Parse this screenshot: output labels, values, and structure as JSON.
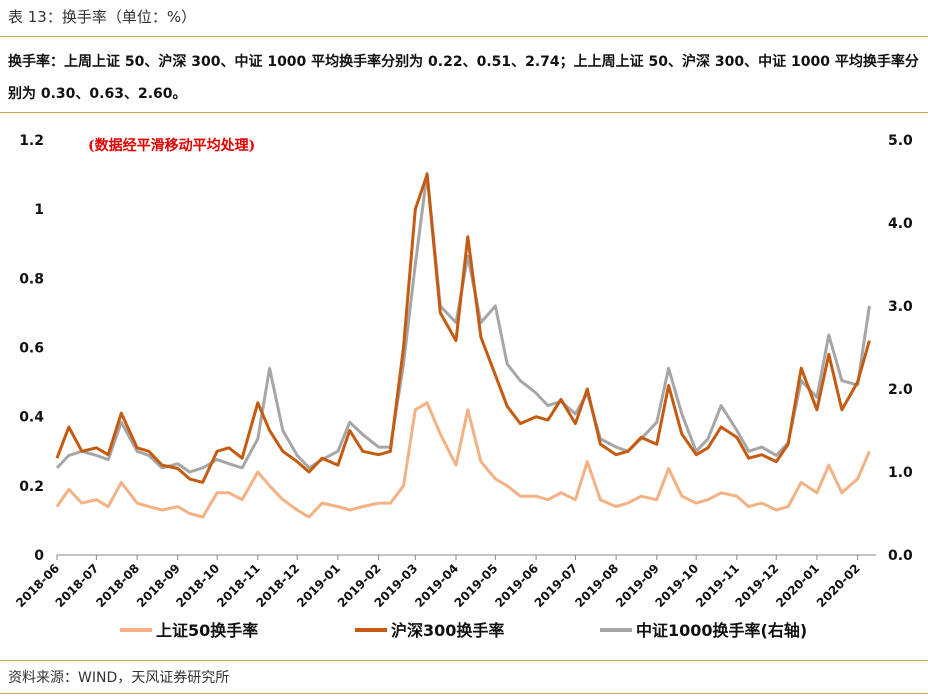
{
  "header": {
    "title": "表 13：换手率（单位：%）",
    "summary": "换手率：上周上证 50、沪深 300、中证 1000 平均换手率分别为 0.22、0.51、2.74；上上周上证 50、沪深 300、中证 1000 平均换手率分别为 0.30、0.63、2.60。"
  },
  "footer": {
    "source": "资料来源：WIND，天风证券研究所"
  },
  "chart_data": {
    "type": "line",
    "annotation": "(数据经平滑移动平均处理)",
    "x_tick_labels": [
      "2018-06",
      "2018-07",
      "2018-08",
      "2018-09",
      "2018-10",
      "2018-11",
      "2018-12",
      "2019-01",
      "2019-02",
      "2019-03",
      "2019-04",
      "2019-05",
      "2019-06",
      "2019-07",
      "2019-08",
      "2019-09",
      "2019-10",
      "2019-11",
      "2019-12",
      "2020-01",
      "2020-02"
    ],
    "y_left": {
      "ticks": [
        "0",
        "0.2",
        "0.4",
        "0.6",
        "0.8",
        "1",
        "1.2"
      ],
      "range": [
        0,
        1.2
      ]
    },
    "y_right": {
      "ticks": [
        "0.0",
        "1.0",
        "2.0",
        "3.0",
        "4.0",
        "5.0"
      ],
      "range": [
        0,
        5
      ]
    },
    "legend_position": "bottom",
    "series": [
      {
        "name": "上证50换手率",
        "axis": "left",
        "color": "#f4b183",
        "x": [
          "2018-06-01",
          "2018-06-10",
          "2018-06-20",
          "2018-07-01",
          "2018-07-10",
          "2018-07-20",
          "2018-08-01",
          "2018-08-10",
          "2018-08-20",
          "2018-09-01",
          "2018-09-10",
          "2018-09-20",
          "2018-10-01",
          "2018-10-10",
          "2018-10-20",
          "2018-11-01",
          "2018-11-10",
          "2018-11-20",
          "2018-12-01",
          "2018-12-10",
          "2018-12-20",
          "2019-01-01",
          "2019-01-10",
          "2019-01-20",
          "2019-02-01",
          "2019-02-10",
          "2019-02-20",
          "2019-03-01",
          "2019-03-10",
          "2019-03-20",
          "2019-04-01",
          "2019-04-10",
          "2019-04-20",
          "2019-05-01",
          "2019-05-10",
          "2019-05-20",
          "2019-06-01",
          "2019-06-10",
          "2019-06-20",
          "2019-07-01",
          "2019-07-10",
          "2019-07-20",
          "2019-08-01",
          "2019-08-10",
          "2019-08-20",
          "2019-09-01",
          "2019-09-10",
          "2019-09-20",
          "2019-10-01",
          "2019-10-10",
          "2019-10-20",
          "2019-11-01",
          "2019-11-10",
          "2019-11-20",
          "2019-12-01",
          "2019-12-10",
          "2019-12-20",
          "2020-01-01",
          "2020-01-10",
          "2020-01-20",
          "2020-02-01",
          "2020-02-10"
        ],
        "values": [
          0.14,
          0.19,
          0.15,
          0.16,
          0.14,
          0.21,
          0.15,
          0.14,
          0.13,
          0.14,
          0.12,
          0.11,
          0.18,
          0.18,
          0.16,
          0.24,
          0.2,
          0.16,
          0.13,
          0.11,
          0.15,
          0.14,
          0.13,
          0.14,
          0.15,
          0.15,
          0.2,
          0.42,
          0.44,
          0.35,
          0.26,
          0.42,
          0.27,
          0.22,
          0.2,
          0.17,
          0.17,
          0.16,
          0.18,
          0.16,
          0.27,
          0.16,
          0.14,
          0.15,
          0.17,
          0.16,
          0.25,
          0.17,
          0.15,
          0.16,
          0.18,
          0.17,
          0.14,
          0.15,
          0.13,
          0.14,
          0.21,
          0.18,
          0.26,
          0.18,
          0.22,
          0.3
        ]
      },
      {
        "name": "沪深300换手率",
        "axis": "left",
        "color": "#c55a11",
        "x": [
          "2018-06-01",
          "2018-06-10",
          "2018-06-20",
          "2018-07-01",
          "2018-07-10",
          "2018-07-20",
          "2018-08-01",
          "2018-08-10",
          "2018-08-20",
          "2018-09-01",
          "2018-09-10",
          "2018-09-20",
          "2018-10-01",
          "2018-10-10",
          "2018-10-20",
          "2018-11-01",
          "2018-11-10",
          "2018-11-20",
          "2018-12-01",
          "2018-12-10",
          "2018-12-20",
          "2019-01-01",
          "2019-01-10",
          "2019-01-20",
          "2019-02-01",
          "2019-02-10",
          "2019-02-20",
          "2019-03-01",
          "2019-03-10",
          "2019-03-20",
          "2019-04-01",
          "2019-04-10",
          "2019-04-20",
          "2019-05-01",
          "2019-05-10",
          "2019-05-20",
          "2019-06-01",
          "2019-06-10",
          "2019-06-20",
          "2019-07-01",
          "2019-07-10",
          "2019-07-20",
          "2019-08-01",
          "2019-08-10",
          "2019-08-20",
          "2019-09-01",
          "2019-09-10",
          "2019-09-20",
          "2019-10-01",
          "2019-10-10",
          "2019-10-20",
          "2019-11-01",
          "2019-11-10",
          "2019-11-20",
          "2019-12-01",
          "2019-12-10",
          "2019-12-20",
          "2020-01-01",
          "2020-01-10",
          "2020-01-20",
          "2020-02-01",
          "2020-02-10"
        ],
        "values": [
          0.28,
          0.37,
          0.3,
          0.31,
          0.29,
          0.41,
          0.31,
          0.3,
          0.26,
          0.25,
          0.22,
          0.21,
          0.3,
          0.31,
          0.28,
          0.44,
          0.36,
          0.3,
          0.27,
          0.24,
          0.28,
          0.26,
          0.36,
          0.3,
          0.29,
          0.3,
          0.6,
          1.0,
          1.1,
          0.7,
          0.62,
          0.92,
          0.63,
          0.52,
          0.43,
          0.38,
          0.4,
          0.39,
          0.45,
          0.38,
          0.48,
          0.32,
          0.29,
          0.3,
          0.34,
          0.32,
          0.49,
          0.35,
          0.29,
          0.31,
          0.37,
          0.34,
          0.28,
          0.29,
          0.27,
          0.32,
          0.54,
          0.42,
          0.58,
          0.42,
          0.5,
          0.62
        ]
      },
      {
        "name": "中证1000换手率(右轴)",
        "axis": "right",
        "color": "#a6a6a6",
        "x": [
          "2018-06-01",
          "2018-06-10",
          "2018-06-20",
          "2018-07-01",
          "2018-07-10",
          "2018-07-20",
          "2018-08-01",
          "2018-08-10",
          "2018-08-20",
          "2018-09-01",
          "2018-09-10",
          "2018-09-20",
          "2018-10-01",
          "2018-10-10",
          "2018-10-20",
          "2018-11-01",
          "2018-11-10",
          "2018-11-20",
          "2018-12-01",
          "2018-12-10",
          "2018-12-20",
          "2019-01-01",
          "2019-01-10",
          "2019-01-20",
          "2019-02-01",
          "2019-02-10",
          "2019-02-20",
          "2019-03-01",
          "2019-03-10",
          "2019-03-20",
          "2019-04-01",
          "2019-04-10",
          "2019-04-20",
          "2019-05-01",
          "2019-05-10",
          "2019-05-20",
          "2019-06-01",
          "2019-06-10",
          "2019-06-20",
          "2019-07-01",
          "2019-07-10",
          "2019-07-20",
          "2019-08-01",
          "2019-08-10",
          "2019-08-20",
          "2019-09-01",
          "2019-09-10",
          "2019-09-20",
          "2019-10-01",
          "2019-10-10",
          "2019-10-20",
          "2019-11-01",
          "2019-11-10",
          "2019-11-20",
          "2019-12-01",
          "2019-12-10",
          "2019-12-20",
          "2020-01-01",
          "2020-01-10",
          "2020-01-20",
          "2020-02-01",
          "2020-02-10"
        ],
        "values": [
          1.05,
          1.2,
          1.25,
          1.2,
          1.15,
          1.6,
          1.25,
          1.2,
          1.05,
          1.1,
          1.0,
          1.05,
          1.15,
          1.1,
          1.05,
          1.4,
          2.25,
          1.5,
          1.2,
          1.05,
          1.15,
          1.25,
          1.6,
          1.45,
          1.3,
          1.3,
          2.3,
          3.5,
          4.6,
          3.0,
          2.8,
          3.6,
          2.8,
          3.0,
          2.3,
          2.1,
          1.95,
          1.8,
          1.85,
          1.7,
          1.95,
          1.4,
          1.3,
          1.25,
          1.4,
          1.6,
          2.25,
          1.7,
          1.25,
          1.4,
          1.8,
          1.5,
          1.25,
          1.3,
          1.2,
          1.35,
          2.1,
          1.9,
          2.65,
          2.1,
          2.05,
          3.0
        ]
      }
    ]
  }
}
